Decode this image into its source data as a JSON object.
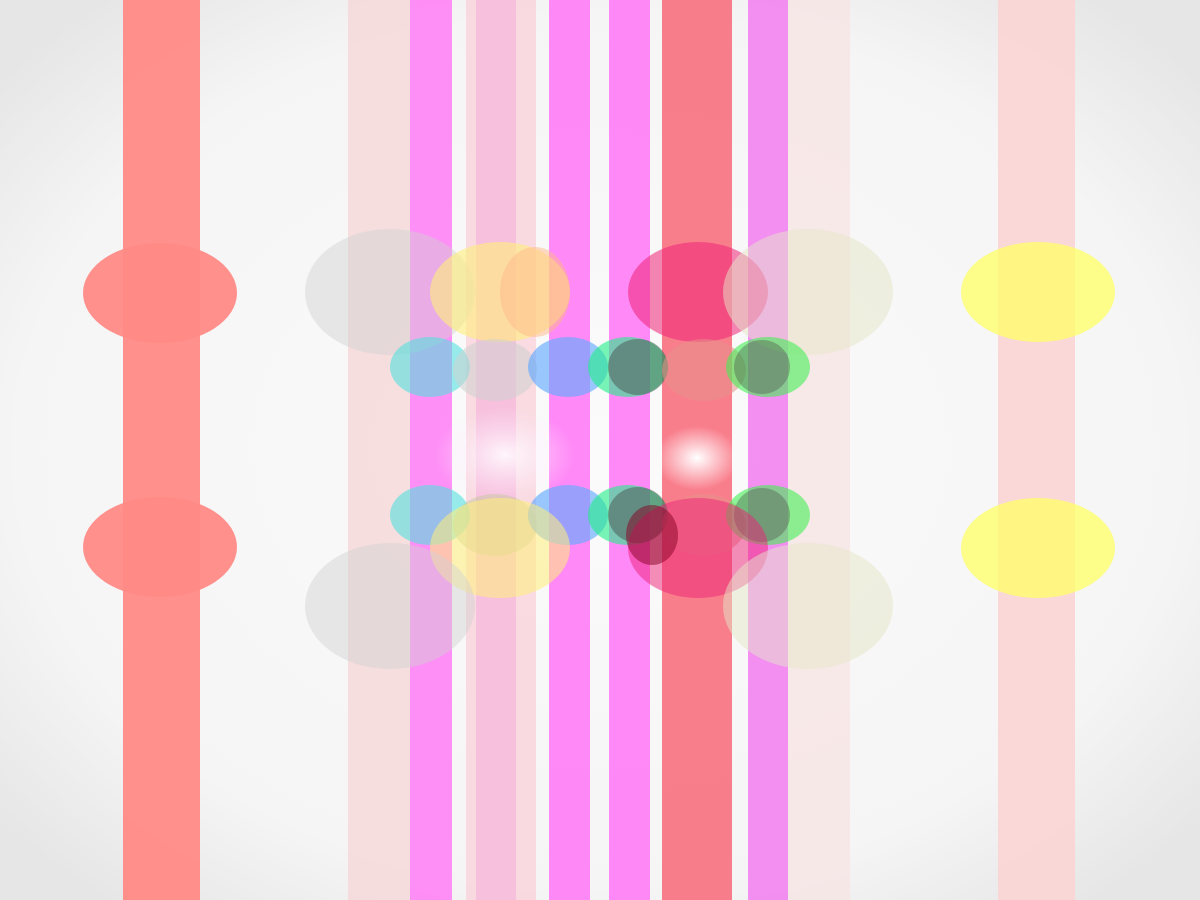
{
  "canvas": {
    "description_name": "abstract-overlapping-shapes",
    "background_color": "#f8f8f8",
    "vignette_color": "#e9e9e9"
  },
  "palette": {
    "salmon": "#ff8a86",
    "pink_light": "#fbd6d6",
    "magenta": "#ff7cf6",
    "pink": "#f7b9dc",
    "red": "#f87486",
    "yellow": "#ffff7a",
    "gray": "#d4d4d4",
    "cyan": "#66e6e6",
    "blue": "#8a8aff",
    "green": "#44ee66",
    "dark": "#555555",
    "crimson": "#ee0066",
    "white_glow": "#ffffff"
  }
}
